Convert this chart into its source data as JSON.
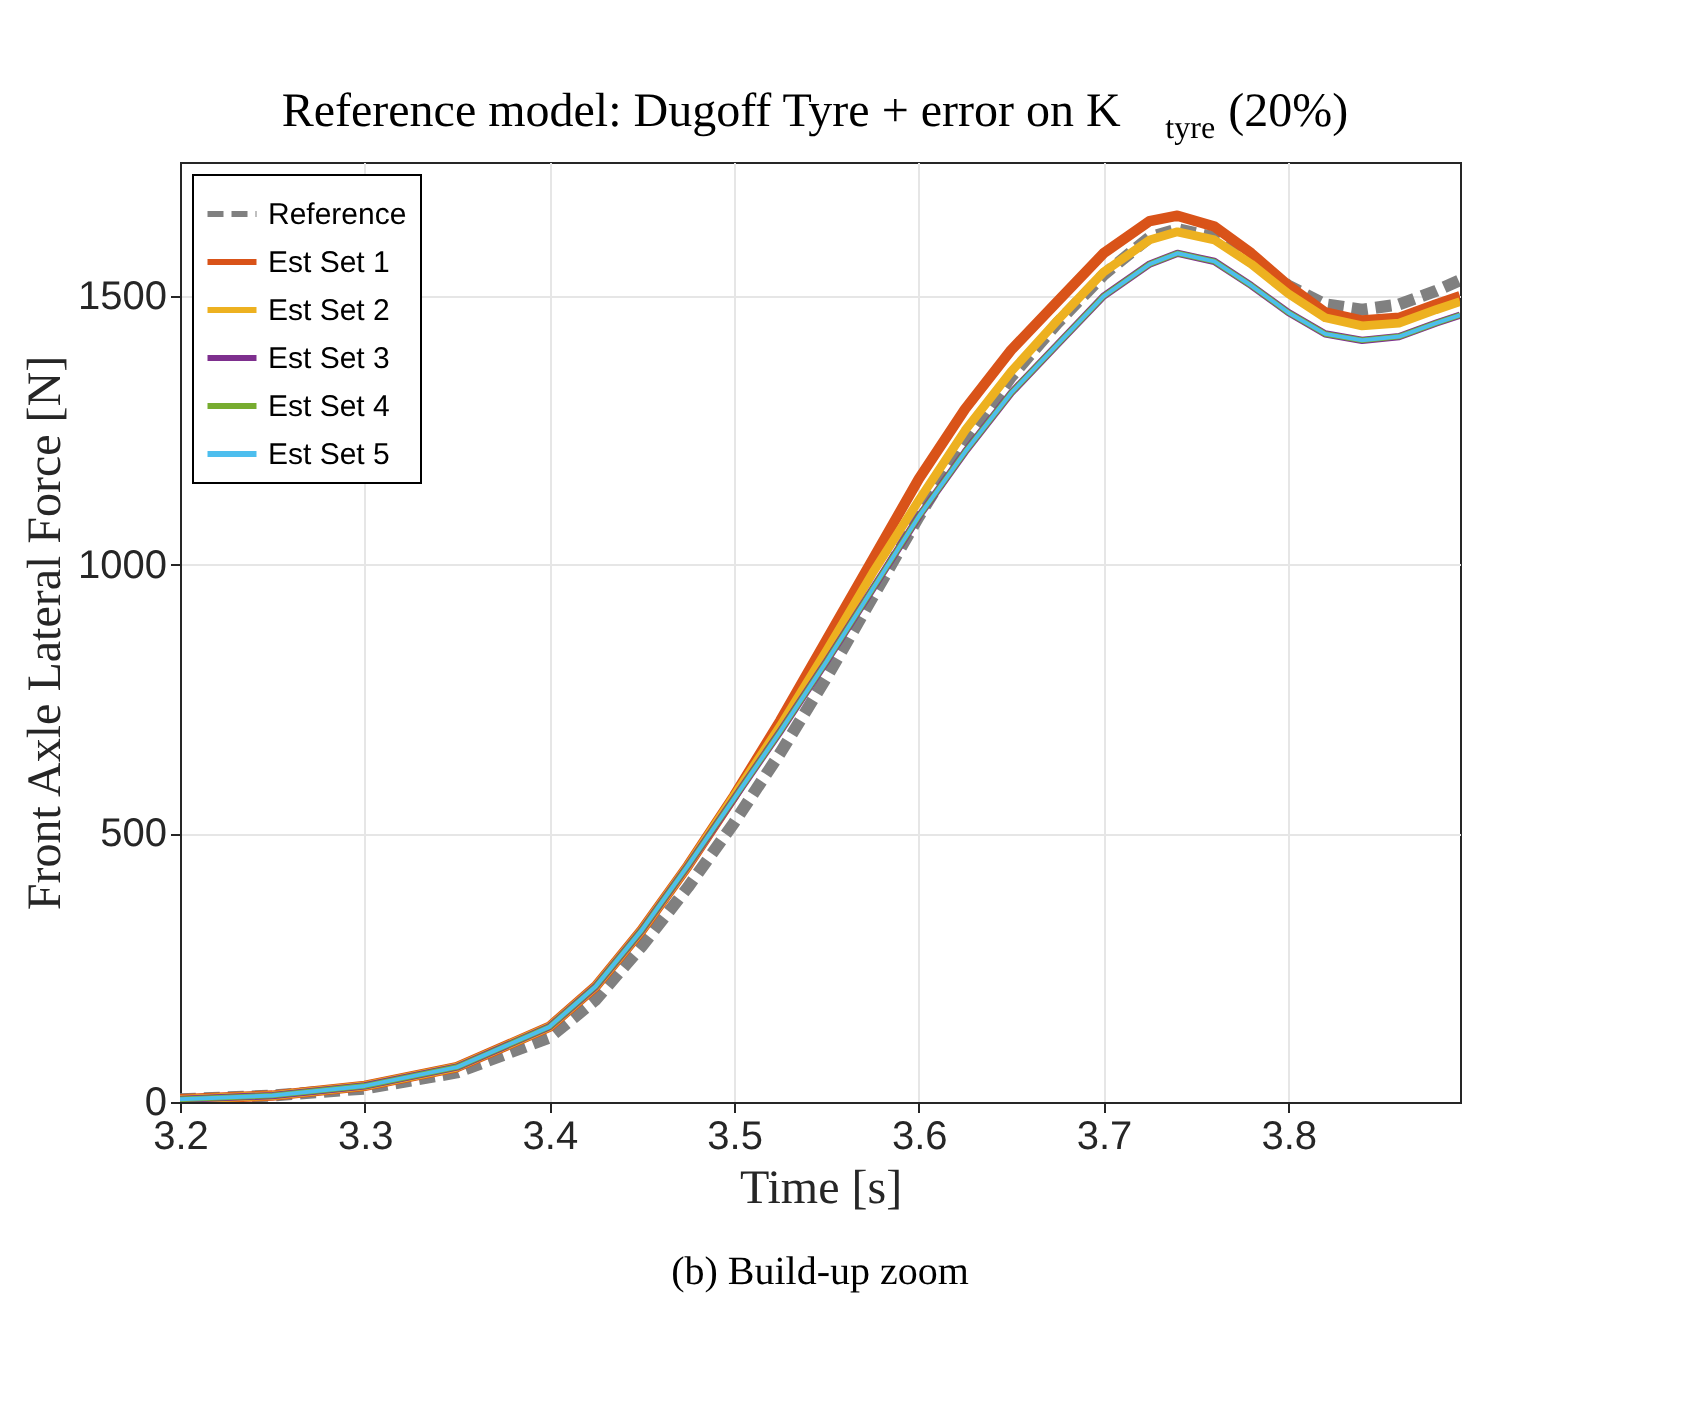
{
  "chart_data": {
    "type": "line",
    "title": "Reference model: Dugoff Tyre + error on K$_{tyre}$ (20%)",
    "xlabel": "Time [s]",
    "ylabel": "Front Axle Lateral Force [N]",
    "annotations": [
      "(b) Build-up zoom"
    ],
    "x": [
      3.2,
      3.25,
      3.3,
      3.35,
      3.4,
      3.425,
      3.45,
      3.475,
      3.5,
      3.525,
      3.55,
      3.575,
      3.6,
      3.625,
      3.65,
      3.675,
      3.7,
      3.725,
      3.74,
      3.76,
      3.78,
      3.8,
      3.82,
      3.84,
      3.86,
      3.88,
      3.893
    ],
    "series": [
      {
        "name": "Reference",
        "color": "#808080",
        "line_style": "dashed",
        "values": [
          5,
          12,
          25,
          55,
          120,
          190,
          290,
          400,
          520,
          650,
          790,
          940,
          1090,
          1230,
          1350,
          1450,
          1540,
          1610,
          1625,
          1610,
          1570,
          1520,
          1485,
          1475,
          1485,
          1510,
          1530
        ]
      },
      {
        "name": "Est Set 1",
        "color": "#d95319",
        "values": [
          5,
          12,
          30,
          65,
          140,
          215,
          320,
          440,
          570,
          710,
          860,
          1010,
          1160,
          1290,
          1400,
          1490,
          1580,
          1640,
          1650,
          1630,
          1580,
          1520,
          1470,
          1455,
          1460,
          1485,
          1500
        ]
      },
      {
        "name": "Est Set 2",
        "color": "#edb120",
        "values": [
          5,
          12,
          30,
          65,
          140,
          215,
          320,
          440,
          570,
          700,
          840,
          985,
          1120,
          1250,
          1360,
          1455,
          1545,
          1605,
          1620,
          1605,
          1560,
          1505,
          1460,
          1445,
          1450,
          1475,
          1490
        ]
      },
      {
        "name": "Est Set 3",
        "color": "#7e2f8e",
        "values": [
          5,
          12,
          30,
          65,
          140,
          215,
          320,
          440,
          565,
          690,
          820,
          955,
          1090,
          1210,
          1320,
          1410,
          1500,
          1560,
          1580,
          1565,
          1520,
          1470,
          1430,
          1418,
          1425,
          1450,
          1465
        ]
      },
      {
        "name": "Est Set 4",
        "color": "#77ac30",
        "values": [
          5,
          12,
          30,
          65,
          140,
          215,
          320,
          440,
          565,
          690,
          820,
          955,
          1090,
          1210,
          1320,
          1410,
          1500,
          1560,
          1580,
          1565,
          1520,
          1470,
          1430,
          1418,
          1425,
          1450,
          1465
        ]
      },
      {
        "name": "Est Set 5",
        "color": "#4dbeee",
        "values": [
          5,
          12,
          30,
          65,
          140,
          215,
          320,
          440,
          565,
          690,
          820,
          955,
          1090,
          1210,
          1320,
          1410,
          1500,
          1560,
          1580,
          1565,
          1520,
          1470,
          1430,
          1418,
          1425,
          1450,
          1465
        ]
      }
    ],
    "xlim": [
      3.2,
      3.893
    ],
    "xticks": [
      3.2,
      3.3,
      3.4,
      3.5,
      3.6,
      3.7,
      3.8
    ],
    "ylim": [
      0,
      1750
    ],
    "yticks": [
      0,
      500,
      1000,
      1500
    ],
    "grid": true,
    "legend": "top left",
    "line_style": "solid"
  }
}
